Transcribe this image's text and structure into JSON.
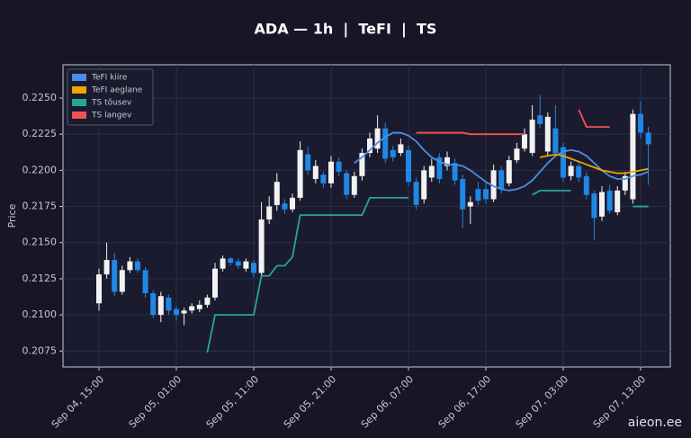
{
  "chart_data": {
    "type": "candlestick",
    "title": "ADA — 1h  |  TeFI  |  TS",
    "y_label": "Price",
    "watermark": "aieon.ee",
    "categories": [
      "Sep 04, 15:00",
      null,
      null,
      null,
      null,
      null,
      null,
      null,
      null,
      null,
      "Sep 05, 01:00",
      null,
      null,
      null,
      null,
      null,
      null,
      null,
      null,
      null,
      "Sep 05, 11:00",
      null,
      null,
      null,
      null,
      null,
      null,
      null,
      null,
      null,
      "Sep 05, 21:00",
      null,
      null,
      null,
      null,
      null,
      null,
      null,
      null,
      null,
      "Sep 06, 07:00",
      null,
      null,
      null,
      null,
      null,
      null,
      null,
      null,
      null,
      "Sep 06, 17:00",
      null,
      null,
      null,
      null,
      null,
      null,
      null,
      null,
      null,
      "Sep 07, 03:00",
      null,
      null,
      null,
      null,
      null,
      null,
      null,
      null,
      null,
      "Sep 07, 13:00",
      null
    ],
    "open": [
      0.2108,
      0.2128,
      0.2138,
      0.2116,
      0.2131,
      0.2137,
      0.2131,
      0.2115,
      0.21,
      0.2112,
      0.2104,
      0.2101,
      0.2103,
      0.2104,
      0.2107,
      0.2112,
      0.2132,
      0.2139,
      0.2137,
      0.2132,
      0.2136,
      0.2129,
      0.2166,
      0.2176,
      0.2177,
      0.2173,
      0.2181,
      0.2211,
      0.2194,
      0.2197,
      0.2191,
      0.2206,
      0.2198,
      0.2183,
      0.2196,
      0.2212,
      0.2215,
      0.2229,
      0.2214,
      0.2212,
      0.2214,
      0.2192,
      0.218,
      0.2195,
      0.2209,
      0.2203,
      0.2205,
      0.2194,
      0.2175,
      0.2187,
      0.2187,
      0.218,
      0.22,
      0.2191,
      0.2207,
      0.2215,
      0.2212,
      0.2238,
      0.2213,
      0.2229,
      0.2216,
      0.2196,
      0.2203,
      0.2196,
      0.2184,
      0.2168,
      0.2186,
      0.2171,
      0.2186,
      0.218,
      0.2239,
      0.2226
    ],
    "high": [
      0.2132,
      0.215,
      0.2143,
      0.2134,
      0.214,
      0.2139,
      0.2133,
      0.2117,
      0.2116,
      0.2114,
      0.2106,
      0.2105,
      0.2108,
      0.211,
      0.2114,
      0.2136,
      0.2141,
      0.214,
      0.2139,
      0.2139,
      0.2138,
      0.2178,
      0.2182,
      0.2198,
      0.218,
      0.2184,
      0.222,
      0.2216,
      0.2207,
      0.2199,
      0.221,
      0.2209,
      0.22,
      0.2199,
      0.2215,
      0.2226,
      0.2238,
      0.2233,
      0.2217,
      0.2222,
      0.2217,
      0.2195,
      0.2203,
      0.2208,
      0.2212,
      0.2213,
      0.2208,
      0.2197,
      0.2182,
      0.2192,
      0.2192,
      0.2204,
      0.2203,
      0.221,
      0.2219,
      0.2229,
      0.2245,
      0.2252,
      0.224,
      0.2245,
      0.2219,
      0.2206,
      0.2206,
      0.2199,
      0.2186,
      0.2189,
      0.219,
      0.2189,
      0.2199,
      0.2242,
      0.2248,
      0.223
    ],
    "low": [
      0.2103,
      0.2125,
      0.2113,
      0.2114,
      0.2129,
      0.2129,
      0.2112,
      0.2098,
      0.2095,
      0.21,
      0.2096,
      0.2093,
      0.2101,
      0.2102,
      0.2105,
      0.211,
      0.213,
      0.2134,
      0.2132,
      0.213,
      0.2126,
      0.2126,
      0.2163,
      0.2172,
      0.217,
      0.2171,
      0.2179,
      0.2197,
      0.2191,
      0.2188,
      0.2188,
      0.2196,
      0.218,
      0.2181,
      0.2193,
      0.2209,
      0.2212,
      0.2205,
      0.2206,
      0.221,
      0.2189,
      0.2173,
      0.2177,
      0.2192,
      0.2191,
      0.22,
      0.219,
      0.216,
      0.2163,
      0.2176,
      0.2177,
      0.2178,
      0.2184,
      0.2189,
      0.2205,
      0.2213,
      0.221,
      0.2229,
      0.221,
      0.2209,
      0.2192,
      0.2193,
      0.2192,
      0.218,
      0.2152,
      0.2165,
      0.217,
      0.2169,
      0.2183,
      0.2177,
      0.2222,
      0.219
    ],
    "close": [
      0.2128,
      0.2138,
      0.2116,
      0.2131,
      0.2137,
      0.2131,
      0.2115,
      0.21,
      0.2113,
      0.2103,
      0.21,
      0.2103,
      0.2106,
      0.2107,
      0.2112,
      0.2132,
      0.2139,
      0.2136,
      0.2134,
      0.2137,
      0.2129,
      0.2166,
      0.2175,
      0.2192,
      0.2173,
      0.2181,
      0.2214,
      0.22,
      0.2203,
      0.2191,
      0.2206,
      0.2199,
      0.2183,
      0.2196,
      0.2212,
      0.2222,
      0.2229,
      0.2208,
      0.2209,
      0.2218,
      0.2192,
      0.2176,
      0.22,
      0.2203,
      0.2194,
      0.2209,
      0.2193,
      0.2173,
      0.2178,
      0.2179,
      0.218,
      0.22,
      0.2187,
      0.2207,
      0.2215,
      0.2225,
      0.2235,
      0.2232,
      0.2237,
      0.2212,
      0.2195,
      0.2203,
      0.2195,
      0.2183,
      0.2167,
      0.2185,
      0.2172,
      0.2186,
      0.2196,
      0.2239,
      0.2226,
      0.2218
    ],
    "up_color": "#f2f2f2",
    "down_color": "#1e88e5",
    "series": [
      {
        "name": "TeFI kiire",
        "color": "#4a90e2",
        "values": [
          null,
          null,
          null,
          null,
          null,
          null,
          null,
          null,
          null,
          null,
          null,
          null,
          null,
          null,
          null,
          null,
          null,
          null,
          null,
          null,
          null,
          null,
          null,
          null,
          null,
          null,
          null,
          null,
          null,
          null,
          null,
          null,
          null,
          0.2205,
          0.2209,
          0.2214,
          0.2219,
          0.2223,
          0.2226,
          0.2226,
          0.2224,
          0.222,
          0.2214,
          0.2209,
          0.2206,
          0.2204,
          0.2204,
          0.2203,
          0.22,
          0.2196,
          0.2192,
          0.2189,
          0.2187,
          0.2186,
          0.2187,
          0.2189,
          0.2193,
          0.2199,
          0.2205,
          0.221,
          0.2213,
          0.2214,
          0.2213,
          0.221,
          0.2205,
          0.22,
          0.2196,
          0.2194,
          0.2194,
          0.2196,
          0.2197,
          0.2199
        ]
      },
      {
        "name": "TeFI aeglane",
        "color": "#f0a500",
        "values": [
          null,
          null,
          null,
          null,
          null,
          null,
          null,
          null,
          null,
          null,
          null,
          null,
          null,
          null,
          null,
          null,
          null,
          null,
          null,
          null,
          null,
          null,
          null,
          null,
          null,
          null,
          null,
          null,
          null,
          null,
          null,
          null,
          null,
          null,
          null,
          null,
          null,
          null,
          null,
          null,
          null,
          null,
          null,
          null,
          null,
          null,
          null,
          null,
          null,
          null,
          null,
          null,
          null,
          null,
          null,
          null,
          null,
          0.2209,
          0.221,
          0.2211,
          0.221,
          0.2208,
          0.2206,
          0.2204,
          0.2202,
          0.22,
          0.2199,
          0.2198,
          0.2198,
          0.2199,
          0.22,
          0.2201
        ]
      },
      {
        "name": "TS tõusev",
        "color": "#26a69a",
        "values": [
          null,
          null,
          null,
          null,
          null,
          null,
          null,
          null,
          null,
          null,
          null,
          null,
          null,
          null,
          0.2074,
          0.21,
          0.21,
          0.21,
          0.21,
          0.21,
          0.21,
          0.2127,
          0.2127,
          0.2134,
          0.2134,
          0.214,
          0.2169,
          0.2169,
          0.2169,
          0.2169,
          0.2169,
          0.2169,
          0.2169,
          0.2169,
          0.2169,
          0.2181,
          0.2181,
          0.2181,
          0.2181,
          0.2181,
          0.2181,
          null,
          null,
          null,
          null,
          null,
          null,
          null,
          null,
          null,
          null,
          null,
          null,
          null,
          null,
          null,
          0.2183,
          0.2186,
          0.2186,
          0.2186,
          0.2186,
          0.2186,
          null,
          null,
          null,
          null,
          null,
          null,
          null,
          0.2175,
          0.2175,
          0.2175
        ]
      },
      {
        "name": "TS langev",
        "color": "#ef5350",
        "values": [
          null,
          null,
          null,
          null,
          null,
          null,
          null,
          null,
          null,
          null,
          null,
          null,
          null,
          null,
          null,
          null,
          null,
          null,
          null,
          null,
          null,
          null,
          null,
          null,
          null,
          null,
          null,
          null,
          null,
          null,
          null,
          null,
          null,
          null,
          null,
          null,
          null,
          null,
          null,
          null,
          null,
          0.2226,
          0.2226,
          0.2226,
          0.2226,
          0.2226,
          0.2226,
          0.2226,
          0.2225,
          0.2225,
          0.2225,
          0.2225,
          0.2225,
          0.2225,
          0.2225,
          0.2225,
          null,
          null,
          null,
          null,
          null,
          null,
          0.2242,
          0.223,
          0.223,
          0.223,
          0.223,
          null,
          null,
          null,
          null,
          null
        ]
      }
    ],
    "ylim": [
      0.2064,
      0.2273
    ],
    "yticks": [
      0.2075,
      {
        "value": 0.21,
        "label": "0.2100"
      },
      0.2125,
      {
        "value": 0.215,
        "label": "0.2150"
      },
      0.2175,
      {
        "value": 0.22,
        "label": "0.2200"
      },
      0.2225,
      {
        "value": 0.225,
        "label": "0.2250"
      }
    ],
    "grid": true,
    "legend": "upper left"
  }
}
